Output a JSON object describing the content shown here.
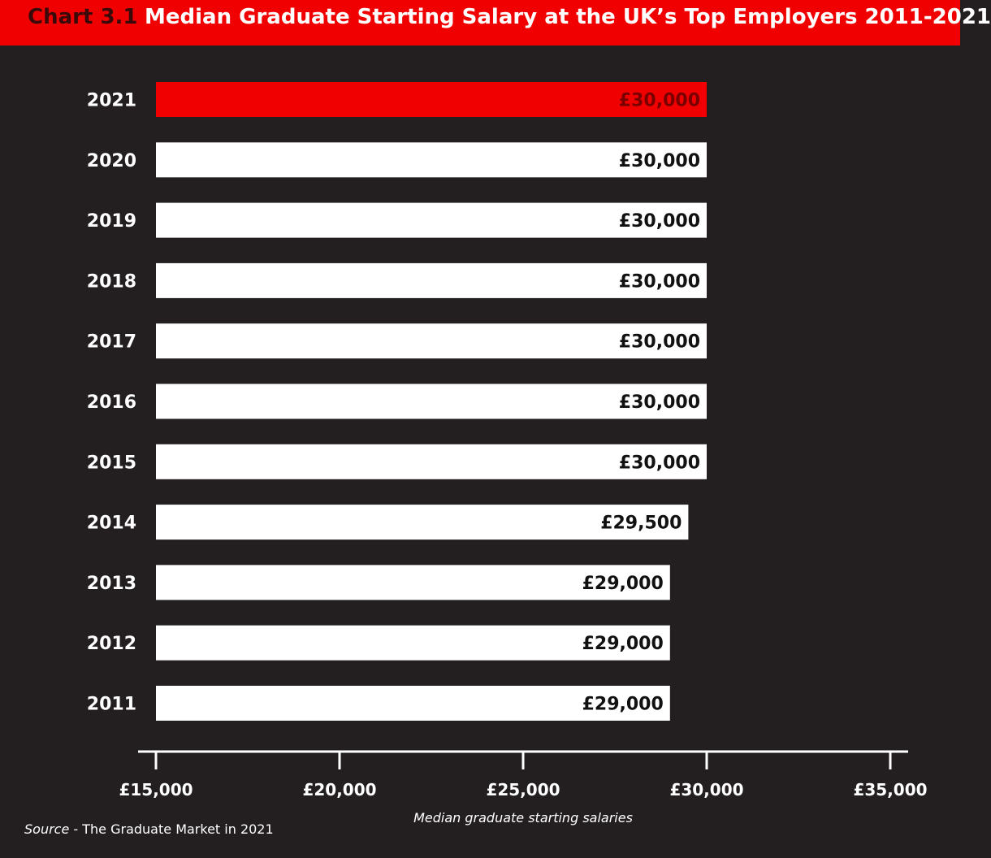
{
  "header": {
    "chart_number": "Chart 3.1",
    "title": "Median Graduate Starting Salary at the UK’s Top Employers 2011-2021"
  },
  "source": {
    "label": "Source",
    "text": " - The Graduate Market in 2021"
  },
  "colors": {
    "background": "#231f20",
    "header": "#f00000",
    "bar": "#ffffff",
    "highlight_bar": "#f00000"
  },
  "chart_data": {
    "type": "bar",
    "orientation": "horizontal",
    "title": "Median Graduate Starting Salary at the UK’s Top Employers 2011-2021",
    "xlabel": "Median graduate starting salaries",
    "ylabel": "",
    "xlim": [
      15000,
      35000
    ],
    "xticks": [
      15000,
      20000,
      25000,
      30000,
      35000
    ],
    "xtick_labels": [
      "£15,000",
      "£20,000",
      "£25,000",
      "£30,000",
      "£35,000"
    ],
    "categories": [
      "2021",
      "2020",
      "2019",
      "2018",
      "2017",
      "2016",
      "2015",
      "2014",
      "2013",
      "2012",
      "2011"
    ],
    "values": [
      30000,
      30000,
      30000,
      30000,
      30000,
      30000,
      30000,
      29500,
      29000,
      29000,
      29000
    ],
    "value_labels": [
      "£30,000",
      "£30,000",
      "£30,000",
      "£30,000",
      "£30,000",
      "£30,000",
      "£30,000",
      "£29,500",
      "£29,000",
      "£29,000",
      "£29,000"
    ],
    "highlight": "2021",
    "grid": false,
    "legend": "none"
  }
}
